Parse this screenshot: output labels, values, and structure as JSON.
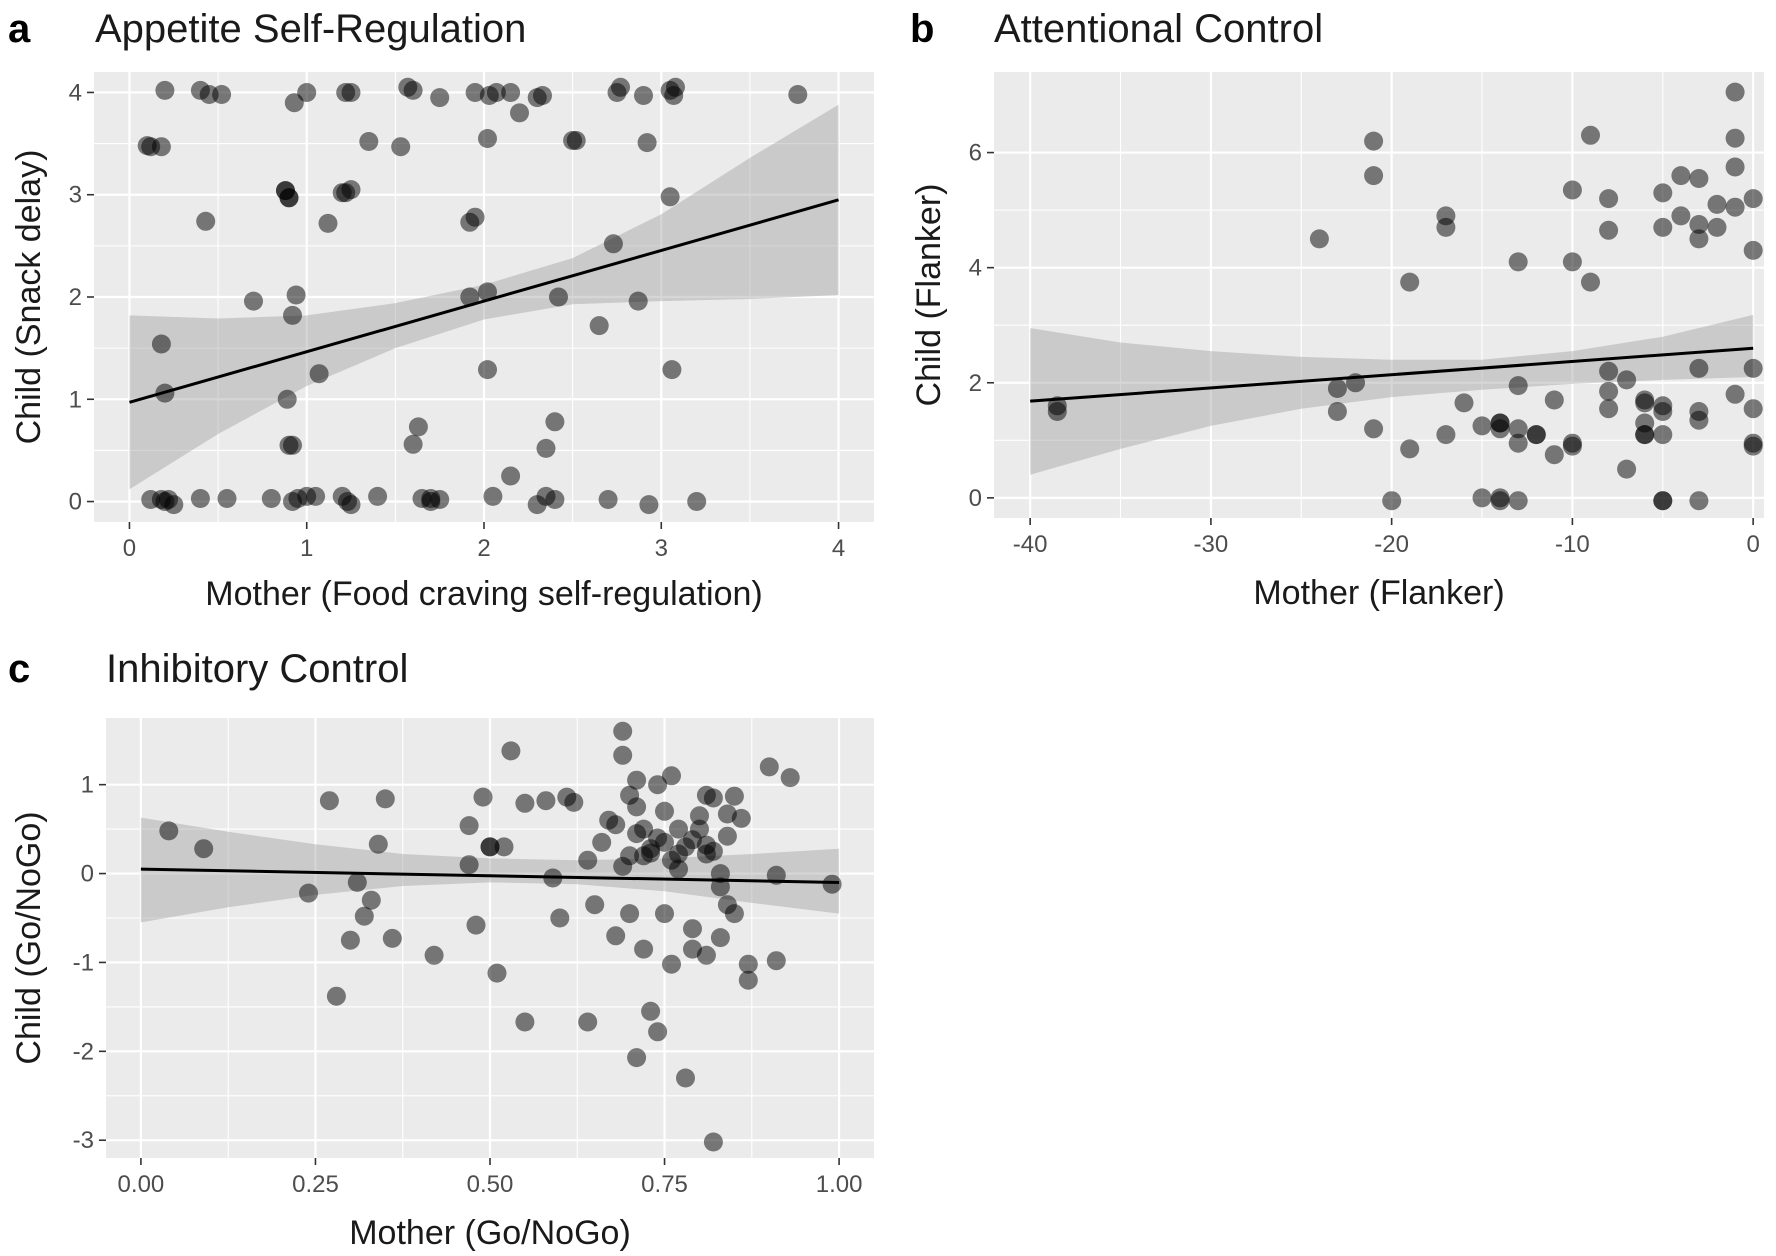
{
  "chart_data": [
    {
      "type": "scatter",
      "panel": "a",
      "title": "Appetite Self-Regulation",
      "xlabel": "Mother (Food craving self-regulation)",
      "ylabel": "Child (Snack delay)",
      "xlim": [
        -0.2,
        4.2
      ],
      "ylim": [
        -0.2,
        4.2
      ],
      "xticks": [
        0,
        1,
        2,
        3,
        4
      ],
      "xtick_labels": [
        "0",
        "1",
        "2",
        "3",
        "4"
      ],
      "yticks": [
        0,
        1,
        2,
        3,
        4
      ],
      "ytick_labels": [
        "0",
        "1",
        "2",
        "3",
        "4"
      ],
      "fit": {
        "x": [
          0,
          4
        ],
        "y": [
          0.97,
          2.95
        ]
      },
      "ci": {
        "x": [
          0,
          0.5,
          1,
          1.5,
          2,
          2.5,
          3,
          3.5,
          4
        ],
        "lower": [
          0.12,
          0.66,
          1.13,
          1.5,
          1.78,
          1.93,
          1.96,
          1.98,
          2.02
        ],
        "upper": [
          1.82,
          1.79,
          1.82,
          1.94,
          2.12,
          2.38,
          2.81,
          3.36,
          3.88
        ]
      },
      "points": {
        "x": [
          0.1,
          0.18,
          0.2,
          0.4,
          0.45,
          0.52,
          0.88,
          0.9,
          0.93,
          1.0,
          1.22,
          1.25,
          1.35,
          1.53,
          1.57,
          1.6,
          1.75,
          1.95,
          2.03,
          2.07,
          2.15,
          2.2,
          2.3,
          2.33,
          2.5,
          2.75,
          2.77,
          2.9,
          3.05,
          3.07,
          3.08,
          3.77,
          0.12,
          0.43,
          0.88,
          0.9,
          1.2,
          1.22,
          1.25,
          1.12,
          1.92,
          1.95,
          2.02,
          2.52,
          2.92,
          3.05,
          0.7,
          0.92,
          0.94,
          1.92,
          2.02,
          2.42,
          2.73,
          2.87,
          0.18,
          0.2,
          0.89,
          0.92,
          1.07,
          2.02,
          2.65,
          3.06,
          1.6,
          1.63,
          0.9,
          2.35,
          0.12,
          0.18,
          0.22,
          0.25,
          0.4,
          0.55,
          0.8,
          0.95,
          1.0,
          1.05,
          1.2,
          1.25,
          1.4,
          1.65,
          1.7,
          1.75,
          2.05,
          2.15,
          2.3,
          2.35,
          2.4,
          2.7,
          2.93,
          3.2,
          0.2,
          0.92,
          1.7,
          1.23,
          2.4
        ],
        "y": [
          3.48,
          3.47,
          4.02,
          4.02,
          3.98,
          3.98,
          3.04,
          2.97,
          3.9,
          4.0,
          4.0,
          4.0,
          3.52,
          3.47,
          4.05,
          4.02,
          3.95,
          4.0,
          3.97,
          4.0,
          4.0,
          3.8,
          3.95,
          3.97,
          3.53,
          4.0,
          4.05,
          3.97,
          4.02,
          3.97,
          4.05,
          3.98,
          3.47,
          2.74,
          3.04,
          2.97,
          3.02,
          3.02,
          3.05,
          2.72,
          2.73,
          2.78,
          3.55,
          3.53,
          3.51,
          2.98,
          1.96,
          1.82,
          2.02,
          2.0,
          2.05,
          2.0,
          2.52,
          1.96,
          1.54,
          1.06,
          1.0,
          0.55,
          1.25,
          1.29,
          1.72,
          1.29,
          0.56,
          0.73,
          0.55,
          0.52,
          0.02,
          0.02,
          0.02,
          -0.03,
          0.03,
          0.03,
          0.03,
          0.03,
          0.05,
          0.05,
          0.05,
          -0.03,
          0.05,
          0.03,
          0.03,
          0.02,
          0.05,
          0.25,
          -0.03,
          0.05,
          0.02,
          0.02,
          -0.03,
          0.0,
          0.0,
          0.0,
          0.0,
          0.0,
          0.78
        ]
      }
    },
    {
      "type": "scatter",
      "panel": "b",
      "title": "Attentional Control",
      "xlabel": "Mother (Flanker)",
      "ylabel": "Child (Flanker)",
      "xlim": [
        -42,
        0.6
      ],
      "ylim": [
        -0.35,
        7.4
      ],
      "xticks": [
        -40,
        -30,
        -20,
        -10,
        0
      ],
      "xtick_labels": [
        "-40",
        "-30",
        "-20",
        "-10",
        "0"
      ],
      "yticks": [
        0,
        2,
        4,
        6
      ],
      "ytick_labels": [
        "0",
        "2",
        "4",
        "6"
      ],
      "fit": {
        "x": [
          -40,
          0
        ],
        "y": [
          1.68,
          2.6
        ]
      },
      "ci": {
        "x": [
          -40,
          -35,
          -30,
          -25,
          -20,
          -15,
          -10,
          -5,
          0
        ],
        "lower": [
          0.4,
          0.85,
          1.25,
          1.55,
          1.75,
          1.88,
          1.98,
          2.05,
          2.1
        ],
        "upper": [
          2.95,
          2.7,
          2.55,
          2.45,
          2.4,
          2.4,
          2.55,
          2.8,
          3.18
        ]
      },
      "points": {
        "x": [
          -38.5,
          -38.5,
          -24,
          -21,
          -21,
          -19,
          -17,
          -17,
          -15,
          -14,
          -13,
          -13,
          -12,
          -11,
          -10,
          -10,
          -10,
          -9,
          -9,
          -8,
          -8,
          -8,
          -8,
          -8,
          -7,
          -6,
          -6,
          -6,
          -6,
          -5,
          -5,
          -5,
          -5,
          -5,
          -4,
          -4,
          -3,
          -3,
          -3,
          -3,
          -3,
          -3,
          -2,
          -2,
          -1,
          -1,
          -1,
          -1,
          -1,
          0,
          0,
          0,
          0,
          0,
          0,
          -23,
          -23,
          -22,
          -21,
          -20,
          -19,
          -17,
          -16,
          -15,
          -14,
          -14,
          -13,
          -13,
          -12,
          -10,
          -11,
          -7,
          -6,
          -5,
          -5,
          -3,
          -13,
          -14,
          -14
        ],
        "y": [
          1.6,
          1.5,
          4.5,
          6.2,
          5.6,
          3.75,
          4.9,
          4.7,
          1.25,
          1.3,
          4.1,
          1.95,
          1.1,
          0.75,
          5.35,
          4.1,
          0.95,
          3.75,
          6.3,
          5.2,
          4.65,
          2.2,
          1.85,
          1.55,
          2.05,
          1.7,
          1.65,
          1.3,
          1.1,
          5.3,
          4.7,
          1.6,
          1.5,
          1.1,
          5.6,
          4.9,
          5.55,
          4.75,
          4.5,
          2.25,
          1.5,
          1.35,
          5.1,
          4.7,
          7.05,
          6.25,
          5.75,
          5.05,
          1.8,
          5.2,
          4.3,
          2.25,
          1.55,
          0.95,
          0.9,
          1.9,
          1.5,
          2.0,
          1.2,
          -0.05,
          0.85,
          1.1,
          1.65,
          0.0,
          0.0,
          -0.05,
          -0.05,
          0.95,
          1.1,
          0.9,
          1.7,
          0.5,
          1.1,
          -0.05,
          -0.05,
          -0.05,
          1.2,
          1.3,
          1.2
        ]
      }
    },
    {
      "type": "scatter",
      "panel": "c",
      "title": "Inhibitory Control",
      "xlabel": "Mother (Go/NoGo)",
      "ylabel": "Child (Go/NoGo)",
      "xlim": [
        -0.05,
        1.05
      ],
      "ylim": [
        -3.2,
        1.75
      ],
      "xticks": [
        0,
        0.25,
        0.5,
        0.75,
        1
      ],
      "xtick_labels": [
        "0.00",
        "0.25",
        "0.50",
        "0.75",
        "1.00"
      ],
      "yticks": [
        -3,
        -2,
        -1,
        0,
        1
      ],
      "ytick_labels": [
        "-3",
        "-2",
        "-1",
        "0",
        "1"
      ],
      "fit": {
        "x": [
          0,
          1
        ],
        "y": [
          0.05,
          -0.1
        ]
      },
      "ci": {
        "x": [
          0,
          0.125,
          0.25,
          0.375,
          0.5,
          0.625,
          0.75,
          0.875,
          1
        ],
        "lower": [
          -0.55,
          -0.38,
          -0.24,
          -0.14,
          -0.1,
          -0.12,
          -0.2,
          -0.33,
          -0.45
        ],
        "upper": [
          0.63,
          0.47,
          0.33,
          0.22,
          0.17,
          0.15,
          0.17,
          0.22,
          0.28
        ]
      },
      "points": {
        "x": [
          0.04,
          0.09,
          0.24,
          0.27,
          0.28,
          0.3,
          0.31,
          0.32,
          0.33,
          0.34,
          0.35,
          0.36,
          0.42,
          0.47,
          0.47,
          0.48,
          0.49,
          0.5,
          0.5,
          0.51,
          0.52,
          0.53,
          0.55,
          0.55,
          0.58,
          0.59,
          0.6,
          0.61,
          0.62,
          0.64,
          0.64,
          0.65,
          0.66,
          0.67,
          0.68,
          0.69,
          0.69,
          0.7,
          0.7,
          0.7,
          0.71,
          0.71,
          0.71,
          0.72,
          0.72,
          0.73,
          0.73,
          0.74,
          0.74,
          0.75,
          0.75,
          0.75,
          0.76,
          0.76,
          0.76,
          0.77,
          0.77,
          0.78,
          0.78,
          0.79,
          0.79,
          0.8,
          0.8,
          0.81,
          0.81,
          0.81,
          0.82,
          0.82,
          0.82,
          0.83,
          0.83,
          0.84,
          0.84,
          0.84,
          0.85,
          0.85,
          0.86,
          0.87,
          0.87,
          0.9,
          0.91,
          0.91,
          0.93,
          0.99,
          0.73,
          0.72,
          0.81,
          0.69,
          0.74,
          0.68,
          0.77,
          0.79,
          0.83,
          0.71
        ],
        "y": [
          0.48,
          0.28,
          -0.22,
          0.82,
          -1.38,
          -0.75,
          -0.1,
          -0.48,
          -0.3,
          0.33,
          0.84,
          -0.73,
          -0.92,
          0.54,
          0.1,
          -0.58,
          0.86,
          0.3,
          0.3,
          -1.12,
          0.3,
          1.38,
          0.79,
          -1.67,
          0.82,
          -0.05,
          -0.5,
          0.86,
          0.8,
          0.15,
          -1.67,
          -0.35,
          0.35,
          0.6,
          -0.7,
          1.6,
          1.33,
          0.88,
          0.2,
          -0.45,
          1.05,
          0.75,
          -2.07,
          0.5,
          -0.85,
          0.23,
          -1.55,
          1.0,
          -1.78,
          0.7,
          0.35,
          -0.45,
          1.1,
          0.15,
          -1.02,
          0.5,
          0.22,
          -2.3,
          0.3,
          0.38,
          -0.62,
          0.65,
          0.5,
          0.88,
          0.22,
          -0.92,
          0.85,
          0.25,
          -3.02,
          0.0,
          -0.15,
          0.67,
          0.42,
          -0.35,
          0.87,
          -0.45,
          0.62,
          -1.02,
          -1.2,
          1.2,
          -0.02,
          -0.98,
          1.08,
          -0.12,
          0.28,
          0.2,
          0.32,
          0.08,
          0.4,
          0.55,
          0.05,
          -0.85,
          -0.72,
          0.45
        ]
      }
    }
  ]
}
